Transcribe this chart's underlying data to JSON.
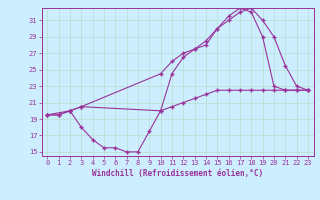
{
  "xlabel": "Windchill (Refroidissement éolien,°C)",
  "bg_color": "#cceeff",
  "line_color": "#993399",
  "grid_color": "#aaddcc",
  "spine_color": "#993399",
  "xlim": [
    -0.5,
    23.5
  ],
  "ylim": [
    14.5,
    32.5
  ],
  "yticks": [
    15,
    17,
    19,
    21,
    23,
    25,
    27,
    29,
    31
  ],
  "xticks": [
    0,
    1,
    2,
    3,
    4,
    5,
    6,
    7,
    8,
    9,
    10,
    11,
    12,
    13,
    14,
    15,
    16,
    17,
    18,
    19,
    20,
    21,
    22,
    23
  ],
  "line1_x": [
    0,
    1,
    2,
    3,
    10,
    11,
    12,
    13,
    14,
    15,
    16,
    17,
    18,
    19,
    20,
    21,
    22,
    23
  ],
  "line1_y": [
    19.5,
    19.5,
    20.0,
    20.5,
    20.0,
    20.5,
    21.0,
    21.5,
    22.0,
    22.5,
    22.5,
    22.5,
    22.5,
    22.5,
    22.5,
    22.5,
    22.5,
    22.5
  ],
  "line2_x": [
    0,
    1,
    2,
    3,
    4,
    5,
    6,
    7,
    8,
    9,
    10,
    11,
    12,
    13,
    14,
    15,
    16,
    17,
    18,
    19,
    20,
    21,
    22,
    23
  ],
  "line2_y": [
    19.5,
    19.5,
    20.0,
    18.0,
    16.5,
    15.5,
    15.5,
    15.0,
    15.0,
    17.5,
    20.0,
    24.5,
    26.5,
    27.5,
    28.0,
    30.0,
    31.5,
    32.5,
    32.0,
    29.0,
    23.0,
    22.5,
    22.5,
    22.5
  ],
  "line3_x": [
    0,
    2,
    3,
    10,
    11,
    12,
    13,
    14,
    15,
    16,
    17,
    18,
    19,
    20,
    21,
    22,
    23
  ],
  "line3_y": [
    19.5,
    20.0,
    20.5,
    24.5,
    26.0,
    27.0,
    27.5,
    28.5,
    30.0,
    31.0,
    32.0,
    32.5,
    31.0,
    29.0,
    25.5,
    23.0,
    22.5
  ],
  "tick_fontsize": 5.0,
  "xlabel_fontsize": 5.5,
  "marker_size": 2.5,
  "linewidth": 0.8
}
